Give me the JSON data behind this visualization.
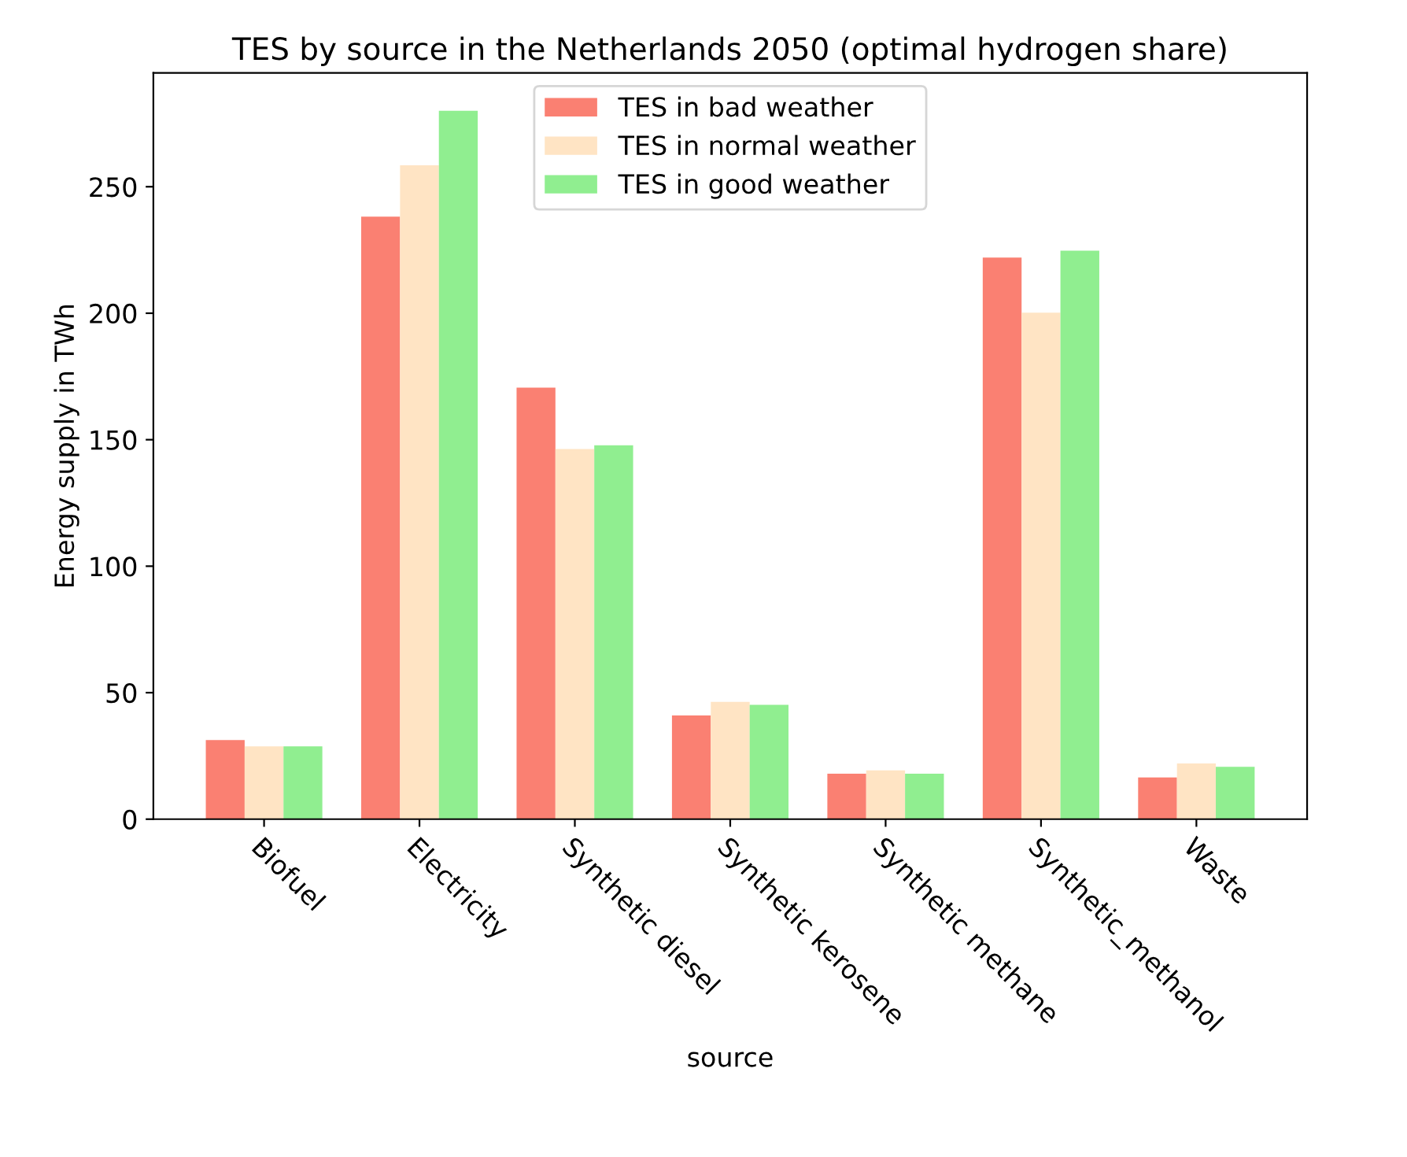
{
  "chart_data": {
    "type": "bar",
    "title": "TES by source in the Netherlands 2050 (optimal hydrogen share)",
    "xlabel": "source",
    "ylabel": "Energy supply in TWh",
    "categories": [
      "Biofuel",
      "Electricity",
      "Synthetic diesel",
      "Synthetic kerosene",
      "Synthetic methane",
      "Synthetic_methanol",
      "Waste"
    ],
    "series": [
      {
        "name": "TES in bad weather",
        "color": "#fa8072",
        "values": [
          31.3,
          238.2,
          170.6,
          41,
          18,
          222,
          16.5
        ]
      },
      {
        "name": "TES in normal weather",
        "color": "#ffe4c4",
        "values": [
          28.8,
          258.5,
          146.3,
          46.4,
          19.3,
          200.2,
          22
        ]
      },
      {
        "name": "TES in good weather",
        "color": "#90ee90",
        "values": [
          28.8,
          280,
          147.8,
          45.2,
          18,
          224.7,
          20.7
        ]
      }
    ],
    "ylim": [
      0,
      295
    ],
    "yticks": [
      0,
      50,
      100,
      150,
      200,
      250
    ],
    "grid": false,
    "legend": "top center"
  }
}
